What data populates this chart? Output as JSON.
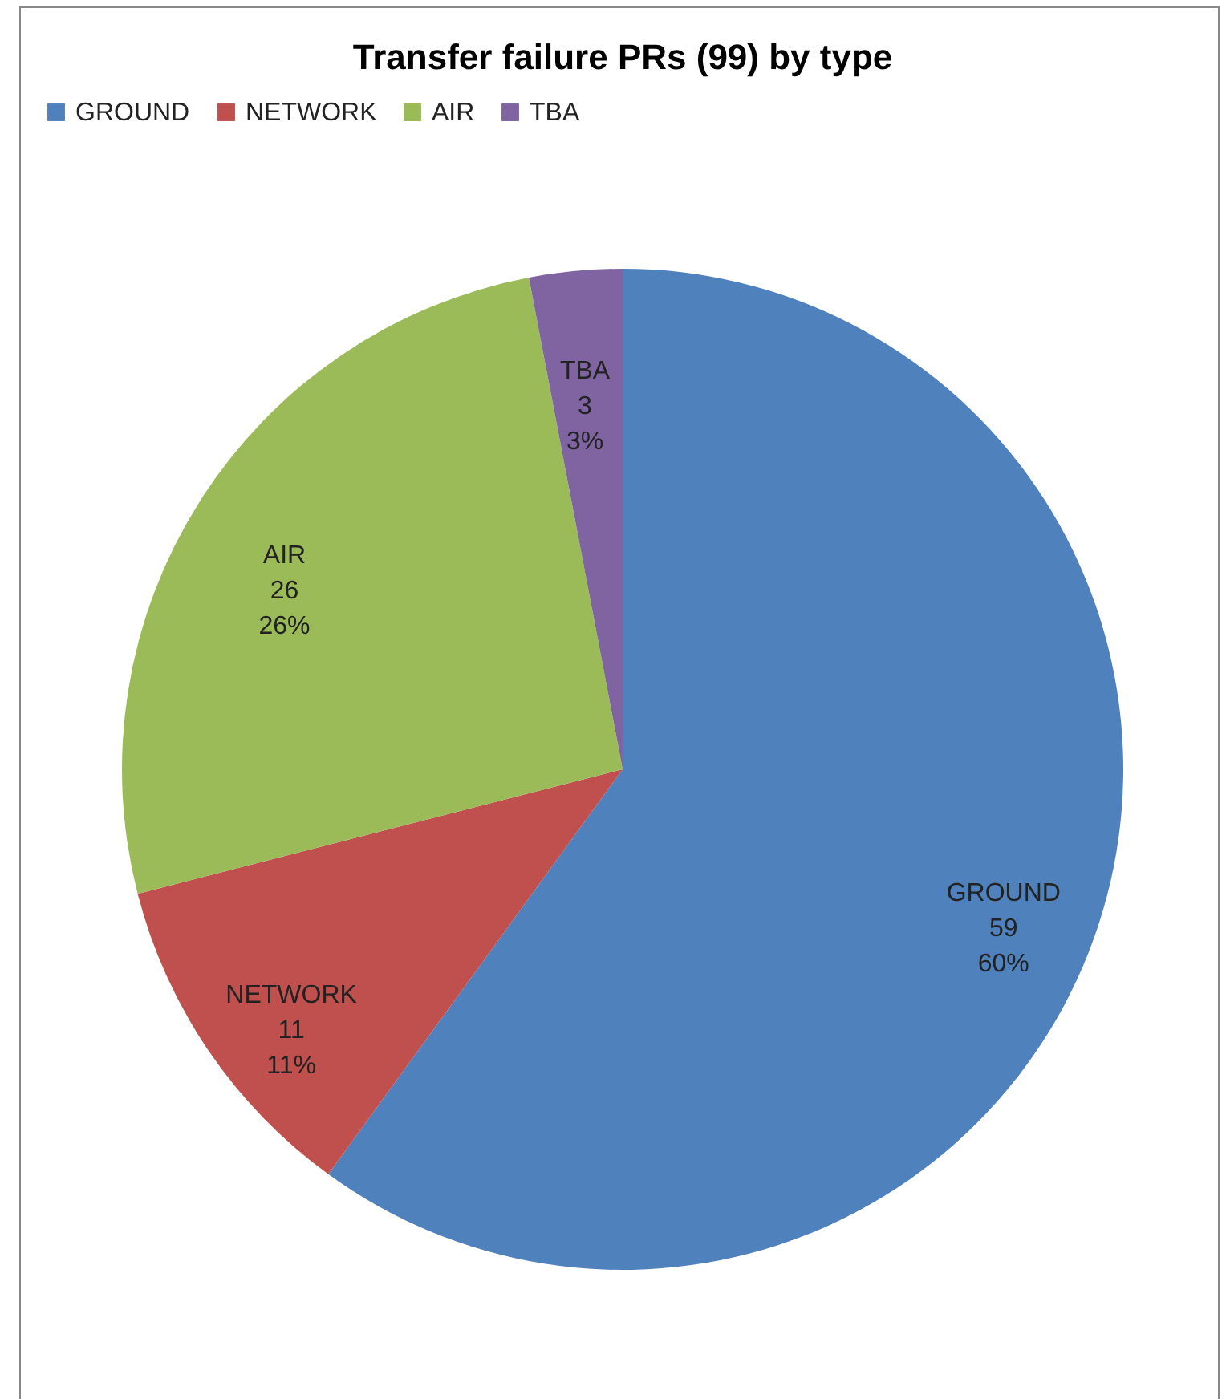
{
  "chart_data": {
    "type": "pie",
    "title": "Transfer failure PRs (99) by type",
    "categories": [
      "GROUND",
      "NETWORK",
      "AIR",
      "TBA"
    ],
    "values": [
      60,
      11,
      26,
      3
    ],
    "colors": [
      "#4f81bd",
      "#c0504d",
      "#9bbb59",
      "#8064a2"
    ],
    "value_labels": [
      "59\n60%",
      "11\n11%",
      "26\n26%",
      "3\n3%"
    ],
    "legend": "top"
  }
}
